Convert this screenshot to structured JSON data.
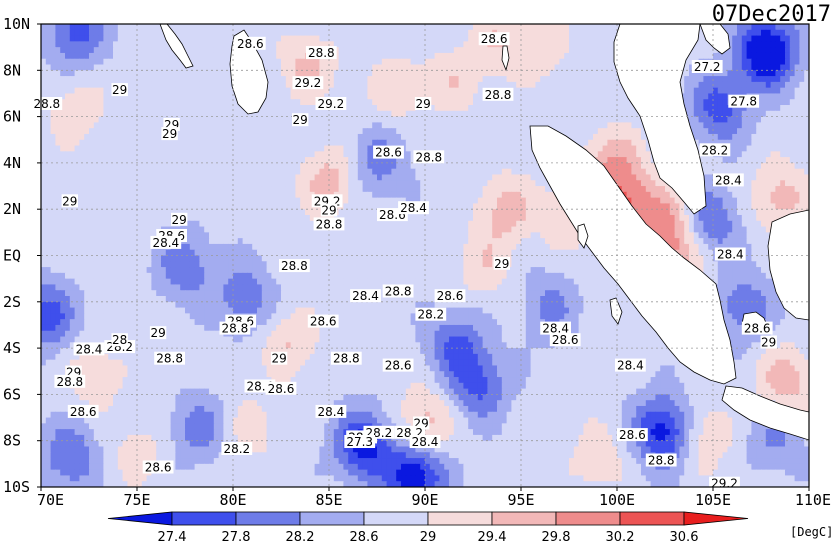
{
  "date_label": "07Dec2017",
  "units_label": "[DegC]",
  "colors": {
    "c0": "#0a18e0",
    "c1": "#3f4fec",
    "c2": "#6e7ce8",
    "c3": "#a3acf0",
    "c4": "#d4d8f8",
    "c5": "#f6dcdc",
    "c6": "#f2b8b8",
    "c7": "#ee8c8c",
    "c8": "#ec5454",
    "c9": "#e81e1e",
    "land": "#ffffff",
    "grid": "#9a9a9a"
  },
  "chart_data": {
    "type": "heatmap",
    "variable": "sea surface temperature",
    "units": "[DegC]",
    "lon_range": [
      70,
      110
    ],
    "lat_range": [
      -10,
      10
    ],
    "lon_ticks": [
      "70E",
      "75E",
      "80E",
      "85E",
      "90E",
      "95E",
      "100E",
      "105E",
      "110E"
    ],
    "lat_ticks": [
      "10N",
      "8N",
      "6N",
      "4N",
      "2N",
      "EQ",
      "2S",
      "4S",
      "6S",
      "8S",
      "10S"
    ],
    "colorbar_levels": [
      "27.4",
      "27.8",
      "28.2",
      "28.6",
      "29",
      "29.4",
      "29.8",
      "30.2",
      "30.6"
    ],
    "contour_labels": [
      {
        "lon": 80.9,
        "lat": 9.1,
        "text": "28.6"
      },
      {
        "lon": 84.6,
        "lat": 8.7,
        "text": "28.8"
      },
      {
        "lon": 93.6,
        "lat": 9.3,
        "text": "28.6"
      },
      {
        "lon": 104.7,
        "lat": 8.1,
        "text": "27.2"
      },
      {
        "lon": 83.9,
        "lat": 7.4,
        "text": "29.2"
      },
      {
        "lon": 70.3,
        "lat": 6.5,
        "text": "28.8"
      },
      {
        "lon": 74.1,
        "lat": 7.1,
        "text": "29"
      },
      {
        "lon": 85.1,
        "lat": 6.5,
        "text": "29.2"
      },
      {
        "lon": 89.9,
        "lat": 6.5,
        "text": "29"
      },
      {
        "lon": 93.8,
        "lat": 6.9,
        "text": "28.8"
      },
      {
        "lon": 106.6,
        "lat": 6.6,
        "text": "27.8"
      },
      {
        "lon": 76.8,
        "lat": 5.6,
        "text": "29"
      },
      {
        "lon": 83.5,
        "lat": 5.8,
        "text": "29"
      },
      {
        "lon": 76.7,
        "lat": 5.2,
        "text": "29"
      },
      {
        "lon": 88.1,
        "lat": 4.4,
        "text": "28.6"
      },
      {
        "lon": 90.2,
        "lat": 4.2,
        "text": "28.8"
      },
      {
        "lon": 105.1,
        "lat": 4.5,
        "text": "28.2"
      },
      {
        "lon": 105.8,
        "lat": 3.2,
        "text": "28.4"
      },
      {
        "lon": 71.5,
        "lat": 2.3,
        "text": "29"
      },
      {
        "lon": 84.9,
        "lat": 2.3,
        "text": "29.2"
      },
      {
        "lon": 88.3,
        "lat": 1.7,
        "text": "28.6"
      },
      {
        "lon": 89.4,
        "lat": 2.0,
        "text": "28.4"
      },
      {
        "lon": 85.0,
        "lat": 1.9,
        "text": "29"
      },
      {
        "lon": 85.0,
        "lat": 1.3,
        "text": "28.8"
      },
      {
        "lon": 77.2,
        "lat": 1.5,
        "text": "29"
      },
      {
        "lon": 76.8,
        "lat": 0.8,
        "text": "28.6"
      },
      {
        "lon": 76.5,
        "lat": 0.5,
        "text": "28.4"
      },
      {
        "lon": 105.9,
        "lat": 0.0,
        "text": "28.4"
      },
      {
        "lon": 83.2,
        "lat": -0.5,
        "text": "28.8"
      },
      {
        "lon": 94.0,
        "lat": -0.4,
        "text": "29"
      },
      {
        "lon": 88.6,
        "lat": -1.6,
        "text": "28.8"
      },
      {
        "lon": 86.9,
        "lat": -1.8,
        "text": "28.4"
      },
      {
        "lon": 91.3,
        "lat": -1.8,
        "text": "28.6"
      },
      {
        "lon": 80.4,
        "lat": -2.9,
        "text": "28.6"
      },
      {
        "lon": 80.1,
        "lat": -3.2,
        "text": "28.8"
      },
      {
        "lon": 84.7,
        "lat": -2.9,
        "text": "28.6"
      },
      {
        "lon": 90.3,
        "lat": -2.6,
        "text": "28.2"
      },
      {
        "lon": 96.8,
        "lat": -3.2,
        "text": "28.4"
      },
      {
        "lon": 97.3,
        "lat": -3.7,
        "text": "28.6"
      },
      {
        "lon": 107.3,
        "lat": -3.2,
        "text": "28.6"
      },
      {
        "lon": 107.9,
        "lat": -3.8,
        "text": "29"
      },
      {
        "lon": 76.1,
        "lat": -3.4,
        "text": "29"
      },
      {
        "lon": 72.5,
        "lat": -4.1,
        "text": "28.4"
      },
      {
        "lon": 74.1,
        "lat": -4.0,
        "text": "28.2"
      },
      {
        "lon": 74.1,
        "lat": -3.7,
        "text": "28"
      },
      {
        "lon": 76.7,
        "lat": -4.5,
        "text": "28.8"
      },
      {
        "lon": 82.4,
        "lat": -4.5,
        "text": "29"
      },
      {
        "lon": 85.9,
        "lat": -4.5,
        "text": "28.8"
      },
      {
        "lon": 88.6,
        "lat": -4.8,
        "text": "28.6"
      },
      {
        "lon": 100.7,
        "lat": -4.8,
        "text": "28.4"
      },
      {
        "lon": 71.7,
        "lat": -5.1,
        "text": "29"
      },
      {
        "lon": 71.5,
        "lat": -5.5,
        "text": "28.8"
      },
      {
        "lon": 81.4,
        "lat": -5.7,
        "text": "28.4"
      },
      {
        "lon": 82.5,
        "lat": -5.8,
        "text": "28.6"
      },
      {
        "lon": 72.2,
        "lat": -6.8,
        "text": "28.6"
      },
      {
        "lon": 85.1,
        "lat": -6.8,
        "text": "28.4"
      },
      {
        "lon": 89.8,
        "lat": -7.3,
        "text": "29"
      },
      {
        "lon": 86.7,
        "lat": -7.9,
        "text": "28.2"
      },
      {
        "lon": 87.6,
        "lat": -7.7,
        "text": "28.2"
      },
      {
        "lon": 86.6,
        "lat": -8.1,
        "text": "27.3"
      },
      {
        "lon": 89.2,
        "lat": -7.7,
        "text": "28.2"
      },
      {
        "lon": 90.0,
        "lat": -8.1,
        "text": "28.4"
      },
      {
        "lon": 100.8,
        "lat": -7.8,
        "text": "28.6"
      },
      {
        "lon": 80.2,
        "lat": -8.4,
        "text": "28.2"
      },
      {
        "lon": 76.1,
        "lat": -9.2,
        "text": "28.6"
      },
      {
        "lon": 102.3,
        "lat": -8.9,
        "text": "28.8"
      },
      {
        "lon": 105.6,
        "lat": -9.9,
        "text": "29.2"
      }
    ],
    "warm_centers": [
      {
        "lon": 83.9,
        "lat": 8.2,
        "value": 29.5
      },
      {
        "lon": 85.0,
        "lat": 3.2,
        "value": 29.6
      },
      {
        "lon": 88.5,
        "lat": 7.2,
        "value": 29.3
      },
      {
        "lon": 91.5,
        "lat": 7.6,
        "value": 29.3
      },
      {
        "lon": 93.8,
        "lat": 9.2,
        "value": 29.3
      },
      {
        "lon": 96.0,
        "lat": 9.0,
        "value": 29.3
      },
      {
        "lon": 94.2,
        "lat": 2.0,
        "value": 29.6
      },
      {
        "lon": 90.0,
        "lat": -7.2,
        "value": 29.6
      },
      {
        "lon": 83.0,
        "lat": -3.8,
        "value": 29.4
      },
      {
        "lon": 71.8,
        "lat": 6.2,
        "value": 29.3
      },
      {
        "lon": 72.8,
        "lat": -5.2,
        "value": 29.3
      },
      {
        "lon": 93.0,
        "lat": -0.5,
        "value": 29.3
      },
      {
        "lon": 97.5,
        "lat": 1.8,
        "value": 29.4
      },
      {
        "lon": 99.8,
        "lat": 4.0,
        "value": 29.7
      },
      {
        "lon": 100.5,
        "lat": 2.2,
        "value": 30.0
      },
      {
        "lon": 102.5,
        "lat": 1.4,
        "value": 29.8
      },
      {
        "lon": 103.0,
        "lat": -0.3,
        "value": 29.6
      },
      {
        "lon": 108.5,
        "lat": 2.5,
        "value": 29.6
      },
      {
        "lon": 108.8,
        "lat": -5.5,
        "value": 29.7
      },
      {
        "lon": 104.5,
        "lat": -7.8,
        "value": 29.4
      },
      {
        "lon": 99.0,
        "lat": -8.8,
        "value": 29.3
      },
      {
        "lon": 81.0,
        "lat": -7.5,
        "value": 29.2
      },
      {
        "lon": 75.0,
        "lat": -8.5,
        "value": 29.2
      }
    ],
    "cool_centers": [
      {
        "lon": 71.8,
        "lat": 9.7,
        "value": 27.6
      },
      {
        "lon": 107.8,
        "lat": 8.8,
        "value": 26.7
      },
      {
        "lon": 105.3,
        "lat": 6.4,
        "value": 27.6
      },
      {
        "lon": 104.9,
        "lat": 1.5,
        "value": 27.8
      },
      {
        "lon": 87.6,
        "lat": 4.0,
        "value": 28.0
      },
      {
        "lon": 77.5,
        "lat": -0.5,
        "value": 27.9
      },
      {
        "lon": 80.6,
        "lat": -1.8,
        "value": 27.9
      },
      {
        "lon": 70.3,
        "lat": -2.6,
        "value": 27.6
      },
      {
        "lon": 91.6,
        "lat": -3.8,
        "value": 27.8
      },
      {
        "lon": 92.8,
        "lat": -5.6,
        "value": 27.7
      },
      {
        "lon": 102.4,
        "lat": -7.6,
        "value": 27.1
      },
      {
        "lon": 86.8,
        "lat": -8.2,
        "value": 27.2
      },
      {
        "lon": 89.5,
        "lat": -9.6,
        "value": 27.0
      },
      {
        "lon": 71.5,
        "lat": -8.7,
        "value": 27.8
      },
      {
        "lon": 78.2,
        "lat": -7.5,
        "value": 28.0
      },
      {
        "lon": 96.5,
        "lat": -2.2,
        "value": 28.1
      },
      {
        "lon": 106.6,
        "lat": -2.2,
        "value": 27.9
      },
      {
        "lon": 108.3,
        "lat": -7.8,
        "value": 28.1
      }
    ]
  }
}
